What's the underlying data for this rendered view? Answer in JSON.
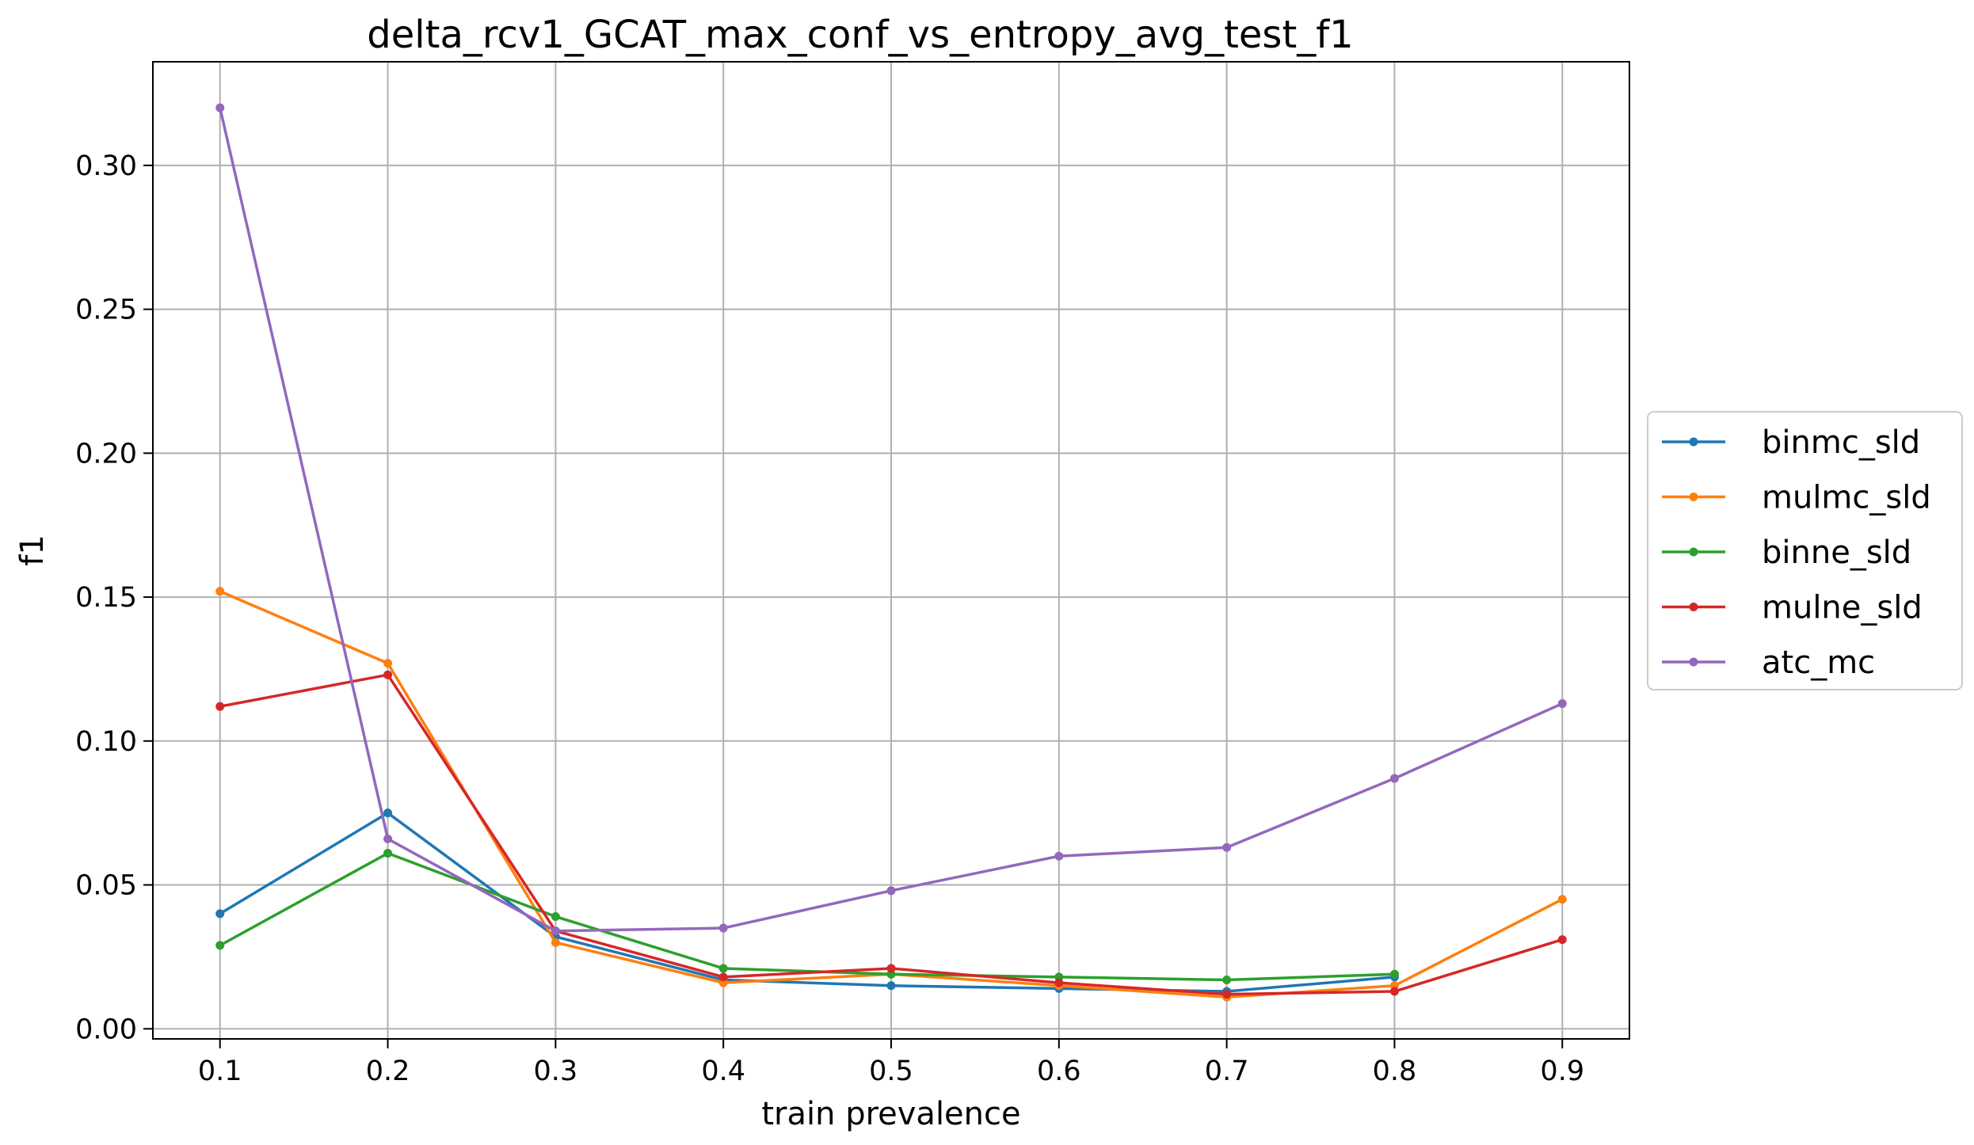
{
  "chart_data": {
    "type": "line",
    "title": "delta_rcv1_GCAT_max_conf_vs_entropy_avg_test_f1",
    "xlabel": "train prevalence",
    "ylabel": "f1",
    "x": [
      0.1,
      0.2,
      0.3,
      0.4,
      0.5,
      0.6,
      0.7,
      0.8,
      0.9
    ],
    "x_ticks": [
      "0.1",
      "0.2",
      "0.3",
      "0.4",
      "0.5",
      "0.6",
      "0.7",
      "0.8",
      "0.9"
    ],
    "y_ticks": [
      "0.00",
      "0.05",
      "0.10",
      "0.15",
      "0.20",
      "0.25",
      "0.30"
    ],
    "xlim": [
      0.06,
      0.94
    ],
    "ylim": [
      -0.0035,
      0.336
    ],
    "grid": true,
    "legend_position": "right",
    "series": [
      {
        "name": "binmc_sld",
        "color": "#1f77b4",
        "values": [
          0.04,
          0.075,
          0.032,
          0.017,
          0.015,
          0.014,
          0.013,
          0.018,
          null
        ]
      },
      {
        "name": "mulmc_sld",
        "color": "#ff7f0e",
        "values": [
          0.152,
          0.127,
          0.03,
          0.016,
          0.019,
          0.015,
          0.011,
          0.015,
          0.045
        ]
      },
      {
        "name": "binne_sld",
        "color": "#2ca02c",
        "values": [
          0.029,
          0.061,
          0.039,
          0.021,
          0.019,
          0.018,
          0.017,
          0.019,
          null
        ]
      },
      {
        "name": "mulne_sld",
        "color": "#d62728",
        "values": [
          0.112,
          0.123,
          0.034,
          0.018,
          0.021,
          0.016,
          0.012,
          0.013,
          0.031
        ]
      },
      {
        "name": "atc_mc",
        "color": "#9467bd",
        "values": [
          0.32,
          0.066,
          0.034,
          0.035,
          0.048,
          0.06,
          0.063,
          0.087,
          0.113
        ]
      }
    ]
  }
}
